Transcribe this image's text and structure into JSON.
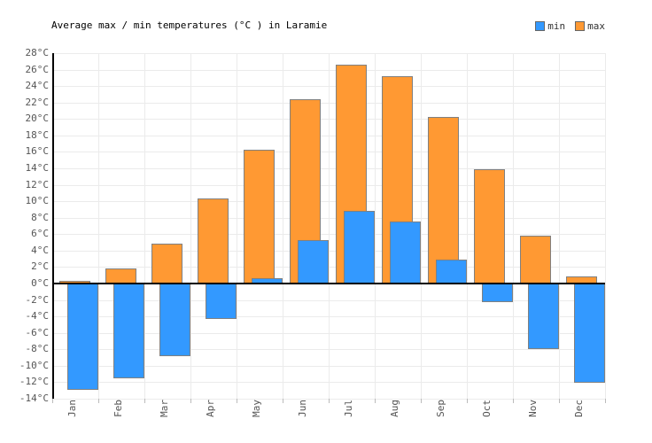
{
  "title": "Average max / min temperatures (°C ) in Laramie",
  "legend": {
    "items": [
      {
        "label": "min",
        "color": "#3399FF"
      },
      {
        "label": "max",
        "color": "#FF9933"
      }
    ]
  },
  "chart_data": {
    "type": "bar",
    "title": "Average max / min temperatures (°C ) in Laramie",
    "categories": [
      "Jan",
      "Feb",
      "Mar",
      "Apr",
      "May",
      "Jun",
      "Jul",
      "Aug",
      "Sep",
      "Oct",
      "Nov",
      "Dec"
    ],
    "series": [
      {
        "name": "min",
        "color": "#3399FF",
        "values": [
          -12.9,
          -11.5,
          -8.8,
          -4.3,
          0.6,
          5.3,
          8.8,
          7.5,
          2.9,
          -2.3,
          -8.0,
          -12.1
        ]
      },
      {
        "name": "max",
        "color": "#FF9933",
        "values": [
          0.3,
          1.8,
          4.8,
          10.3,
          16.3,
          22.4,
          26.6,
          25.2,
          20.2,
          13.9,
          5.8,
          0.9
        ]
      }
    ],
    "xlabel": "",
    "ylabel": "",
    "ylim": [
      -14,
      28
    ],
    "ytick_step": 2,
    "ytick_suffix": "°C",
    "grid": true,
    "legend_position": "top-right",
    "colors": {
      "bar_border": "#808080",
      "gridline": "#ebebeb",
      "axis": "#000000",
      "tick_label": "#555555",
      "title": "#000000"
    }
  }
}
